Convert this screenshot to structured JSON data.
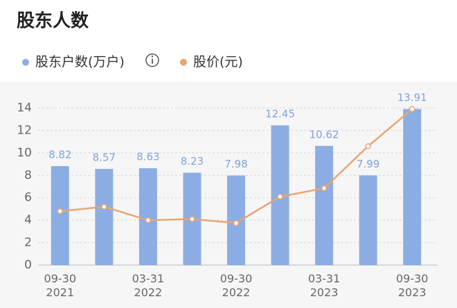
{
  "chart_data": {
    "type": "bar_line",
    "title": "股东人数",
    "categories": [
      "09-30\n2021",
      null,
      "03-31\n2022",
      null,
      "09-30\n2022",
      null,
      "03-31\n2023",
      null,
      "09-30\n2023"
    ],
    "series": [
      {
        "name": "股东户数(万户)",
        "color": "#8cade3",
        "kind": "bar",
        "values": [
          8.82,
          8.57,
          8.63,
          8.23,
          7.98,
          12.45,
          10.62,
          7.99,
          13.91
        ]
      },
      {
        "name": "股价(元)",
        "color": "#e8a571",
        "kind": "line",
        "values": [
          4.8,
          5.2,
          4.0,
          4.1,
          3.75,
          6.1,
          6.85,
          10.6,
          13.9
        ]
      }
    ],
    "ylim": [
      0,
      14
    ],
    "yticks": [
      0,
      2,
      4,
      6,
      8,
      10,
      12,
      14
    ],
    "grid": true
  }
}
